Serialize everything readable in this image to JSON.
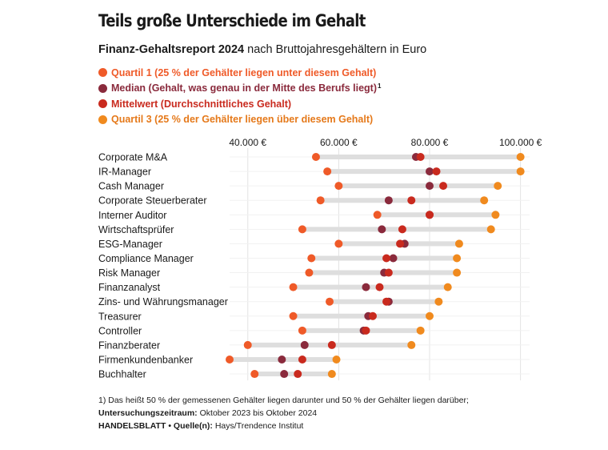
{
  "header": {
    "title": "Teils große Unterschiede im Gehalt",
    "subtitle_bold": "Finanz-Gehaltsreport 2024",
    "subtitle_rest": "nach Bruttojahresgehältern in Euro"
  },
  "legend": [
    {
      "label": "Quartil 1 (25 % der Gehälter liegen unter diesem Gehalt)",
      "color": "#ef5a28",
      "sup": ""
    },
    {
      "label": "Median (Gehalt, was genau in der Mitte des Berufs liegt)",
      "color": "#8a2a3c",
      "sup": "1"
    },
    {
      "label": "Mittelwert (Durchschnittliches Gehalt)",
      "color": "#c92a1e",
      "sup": ""
    },
    {
      "label": "Quartil 3 (25 % der Gehälter liegen über diesem Gehalt)",
      "color": "#f08a1e",
      "sup": ""
    }
  ],
  "chart_data": {
    "type": "dot-range",
    "x_ticks": [
      40000,
      60000,
      80000,
      100000
    ],
    "x_tick_labels": [
      "40.000 €",
      "60.000 €",
      "80.000 €",
      "100.000 €"
    ],
    "xlim": [
      36000,
      102000
    ],
    "grid": true,
    "categories": [
      "Corporate M&A",
      "IR-Manager",
      "Cash Manager",
      "Corporate Steuerberater",
      "Interner Auditor",
      "Wirtschaftsprüfer",
      "ESG-Manager",
      "Compliance Manager",
      "Risk Manager",
      "Finanzanalyst",
      "Zins- und Währungsmanager",
      "Treasurer",
      "Controller",
      "Finanzberater",
      "Firmenkundenbanker",
      "Buchhalter"
    ],
    "series": [
      {
        "name": "Quartil 1",
        "color": "#ef5a28",
        "values": [
          55000,
          57500,
          60000,
          56000,
          68500,
          52000,
          60000,
          54000,
          53500,
          50000,
          58000,
          50000,
          52000,
          40000,
          36000,
          41500
        ]
      },
      {
        "name": "Median",
        "color": "#8a2a3c",
        "values": [
          77000,
          80000,
          80000,
          71000,
          80000,
          69500,
          74500,
          72000,
          70000,
          66000,
          71000,
          66500,
          65500,
          52500,
          47500,
          48000
        ]
      },
      {
        "name": "Mittelwert",
        "color": "#c92a1e",
        "values": [
          78000,
          81500,
          83000,
          76000,
          80000,
          74000,
          73500,
          70500,
          71000,
          69000,
          70500,
          67500,
          66000,
          58500,
          52000,
          51000
        ]
      },
      {
        "name": "Quartil 3",
        "color": "#f08a1e",
        "values": [
          100000,
          100000,
          95000,
          92000,
          94500,
          93500,
          86500,
          86000,
          86000,
          84000,
          82000,
          80000,
          78000,
          76000,
          59500,
          58500
        ]
      }
    ]
  },
  "footer": {
    "footnote": "1) Das heißt 50 % der gemessenen Gehälter liegen darunter und 50 % der Gehälter liegen darüber;",
    "period_label": "Untersuchungszeitraum:",
    "period_value": "Oktober 2023 bis Oktober 2024",
    "publisher": "HANDELSBLATT",
    "source_label": "• Quelle(n):",
    "source_value": "Hays/Trendence Institut"
  }
}
